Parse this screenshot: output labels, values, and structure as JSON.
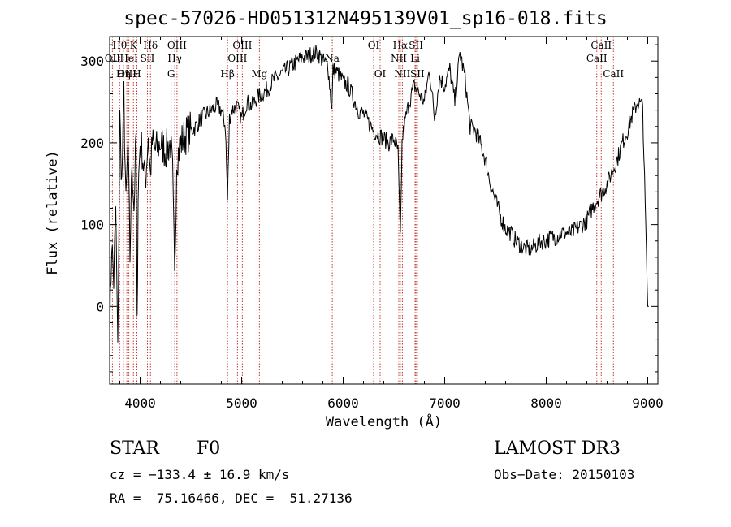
{
  "chart_data": {
    "type": "line",
    "title": "spec-57026-HD051312N495139V01_sp16-018.fits",
    "xlabel": "Wavelength (Å)",
    "ylabel": "Flux (relative)",
    "xlim": [
      3700,
      9100
    ],
    "ylim": [
      -95,
      330
    ],
    "xticks": [
      4000,
      5000,
      6000,
      7000,
      8000,
      9000
    ],
    "yticks": [
      0,
      100,
      200,
      300
    ],
    "series": [
      {
        "name": "flux",
        "x": [
          3700,
          3720,
          3740,
          3760,
          3780,
          3800,
          3820,
          3840,
          3860,
          3880,
          3900,
          3920,
          3940,
          3960,
          3970,
          3980,
          4000,
          4020,
          4050,
          4080,
          4100,
          4120,
          4150,
          4200,
          4250,
          4300,
          4320,
          4340,
          4360,
          4400,
          4450,
          4500,
          4550,
          4600,
          4650,
          4700,
          4750,
          4800,
          4840,
          4861,
          4880,
          4900,
          4950,
          5000,
          5050,
          5100,
          5150,
          5200,
          5250,
          5300,
          5350,
          5400,
          5450,
          5500,
          5550,
          5600,
          5650,
          5700,
          5750,
          5800,
          5850,
          5889,
          5900,
          5950,
          6000,
          6050,
          6100,
          6150,
          6200,
          6250,
          6300,
          6350,
          6400,
          6450,
          6500,
          6540,
          6563,
          6580,
          6600,
          6650,
          6700,
          6750,
          6800,
          6850,
          6900,
          6950,
          7000,
          7050,
          7100,
          7150,
          7200,
          7250,
          7300,
          7350,
          7400,
          7450,
          7500,
          7550,
          7600,
          7650,
          7700,
          7750,
          7800,
          7850,
          7900,
          7950,
          8000,
          8050,
          8100,
          8150,
          8200,
          8250,
          8300,
          8350,
          8400,
          8450,
          8500,
          8550,
          8600,
          8650,
          8700,
          8750,
          8800,
          8850,
          8900,
          8950,
          9000,
          9010
        ],
        "y": [
          -40,
          80,
          30,
          120,
          -60,
          230,
          150,
          260,
          120,
          200,
          60,
          180,
          120,
          210,
          -30,
          140,
          200,
          190,
          150,
          210,
          160,
          200,
          190,
          200,
          190,
          200,
          160,
          30,
          180,
          200,
          210,
          215,
          220,
          230,
          235,
          240,
          245,
          240,
          220,
          130,
          230,
          240,
          245,
          230,
          250,
          245,
          255,
          260,
          265,
          275,
          280,
          285,
          290,
          295,
          300,
          305,
          305,
          310,
          310,
          300,
          295,
          240,
          290,
          285,
          275,
          270,
          255,
          240,
          235,
          225,
          215,
          210,
          205,
          200,
          205,
          190,
          80,
          200,
          220,
          250,
          270,
          260,
          250,
          290,
          230,
          280,
          270,
          290,
          250,
          310,
          280,
          220,
          215,
          200,
          180,
          150,
          130,
          110,
          95,
          90,
          80,
          75,
          70,
          70,
          75,
          80,
          80,
          85,
          85,
          90,
          90,
          90,
          95,
          100,
          105,
          120,
          130,
          140,
          150,
          165,
          180,
          200,
          215,
          235,
          250,
          245,
          0,
          0
        ]
      }
    ],
    "line_markers": [
      {
        "label": "Hθ",
        "wl": 3798,
        "row": 0
      },
      {
        "label": "OII",
        "wl": 3727,
        "row": 1
      },
      {
        "label": "OIII",
        "wl": 3869,
        "row": 2
      },
      {
        "label": "K",
        "wl": 3934,
        "row": 0
      },
      {
        "label": "HeI",
        "wl": 3889,
        "row": 1
      },
      {
        "label": "Hη",
        "wl": 3835,
        "row": 2
      },
      {
        "label": "SII",
        "wl": 4072,
        "row": 1
      },
      {
        "label": "H",
        "wl": 3968,
        "row": 2
      },
      {
        "label": "Hδ",
        "wl": 4102,
        "row": 0
      },
      {
        "label": "OIII",
        "wl": 4363,
        "row": 0
      },
      {
        "label": "Hγ",
        "wl": 4341,
        "row": 1
      },
      {
        "label": "G",
        "wl": 4305,
        "row": 2
      },
      {
        "label": "OIII",
        "wl": 5007,
        "row": 0
      },
      {
        "label": "OIII",
        "wl": 4959,
        "row": 1
      },
      {
        "label": "Hβ",
        "wl": 4861,
        "row": 2
      },
      {
        "label": "Mg",
        "wl": 5175,
        "row": 2
      },
      {
        "label": "Na",
        "wl": 5893,
        "row": 1
      },
      {
        "label": "OI",
        "wl": 6300,
        "row": 0
      },
      {
        "label": "OI",
        "wl": 6364,
        "row": 2
      },
      {
        "label": "Hα",
        "wl": 6563,
        "row": 0
      },
      {
        "label": "NII",
        "wl": 6548,
        "row": 1
      },
      {
        "label": "NII",
        "wl": 6583,
        "row": 2
      },
      {
        "label": "SII",
        "wl": 6717,
        "row": 0
      },
      {
        "label": "Li",
        "wl": 6708,
        "row": 1
      },
      {
        "label": "SII",
        "wl": 6731,
        "row": 2
      },
      {
        "label": "CaII",
        "wl": 8542,
        "row": 0
      },
      {
        "label": "CaII",
        "wl": 8498,
        "row": 1
      },
      {
        "label": "CaII",
        "wl": 8662,
        "row": 2
      }
    ]
  },
  "info": {
    "object_class": "STAR",
    "subclass": "F0",
    "survey": "LAMOST DR3",
    "redshift_text": "cz = −133.4 ± 16.9 km/s",
    "obs_date_text": "Obs−Date: 20150103",
    "coords_text": "RA =  75.16466, DEC =  51.27136"
  }
}
